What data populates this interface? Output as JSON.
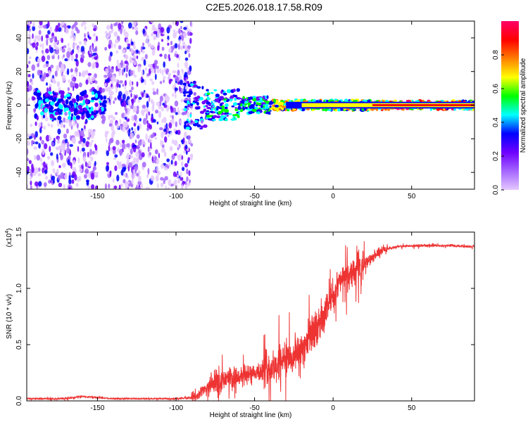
{
  "title": "C2E5.2026.018.17.58.R09",
  "chart_data": [
    {
      "type": "heatmap",
      "name": "spectrogram",
      "xlabel": "Height of straight line (km)",
      "ylabel": "Frequency (Hz)",
      "xlim": [
        -195,
        90
      ],
      "ylim": [
        -50,
        50
      ],
      "xticks": [
        -150,
        -100,
        -50,
        0,
        50
      ],
      "yticks": [
        -40,
        -20,
        0,
        20,
        40
      ],
      "colorbar": {
        "label": "Normalized spectral amplitude",
        "range": [
          0,
          1
        ],
        "ticks": [
          "0.0",
          "0.2",
          "0.4",
          "0.6",
          "0.8"
        ],
        "tick_values": [
          0,
          0.2,
          0.4,
          0.6,
          0.8
        ],
        "colors": [
          "#e4c8ff",
          "#a566ff",
          "#6f00ff",
          "#0000ff",
          "#00ffff",
          "#00ff00",
          "#ffff00",
          "#ff7f00",
          "#ff0000",
          "#ff0066"
        ]
      },
      "ridge": [
        {
          "x0": -95,
          "x1": -80,
          "width": 14,
          "amp": 0.45
        },
        {
          "x0": -80,
          "x1": -60,
          "width": 9,
          "amp": 0.55
        },
        {
          "x0": -60,
          "x1": -40,
          "width": 5,
          "amp": 0.6
        },
        {
          "x0": -40,
          "x1": -25,
          "width": 3,
          "amp": 0.8
        },
        {
          "x0": -25,
          "x1": -10,
          "width": 3,
          "amp": 0.9
        },
        {
          "x0": -10,
          "x1": 25,
          "width": 3,
          "amp": 0.75
        },
        {
          "x0": 25,
          "x1": 90,
          "width": 2.5,
          "amp": 0.95
        }
      ],
      "noise_bands": [
        {
          "x0": -195,
          "x1": -150,
          "spread": 50,
          "density": 0.9
        },
        {
          "x0": -150,
          "x1": -145,
          "spread": 10,
          "density": 0.5
        },
        {
          "x0": -145,
          "x1": -90,
          "spread": 50,
          "density": 1.0
        }
      ]
    },
    {
      "type": "line",
      "name": "snr",
      "xlabel": "Height of straight line (km)",
      "ylabel": "SNR (10 * v/v)",
      "yscale_label": "(x10",
      "yscale_exp": "4",
      "yscale_close": ")",
      "xlim": [
        -195,
        90
      ],
      "ylim": [
        0,
        1.5
      ],
      "xticks": [
        -150,
        -100,
        -50,
        0,
        50
      ],
      "yticks": [
        "0.0",
        "0.5",
        "1.0",
        "1.5"
      ],
      "ytick_values": [
        0,
        0.5,
        1.0,
        1.5
      ],
      "color": "#ee3333",
      "series": [
        {
          "x": -195,
          "y": 0.02
        },
        {
          "x": -170,
          "y": 0.02
        },
        {
          "x": -160,
          "y": 0.04
        },
        {
          "x": -140,
          "y": 0.02
        },
        {
          "x": -100,
          "y": 0.02
        },
        {
          "x": -90,
          "y": 0.03
        },
        {
          "x": -82,
          "y": 0.1
        },
        {
          "x": -75,
          "y": 0.17
        },
        {
          "x": -65,
          "y": 0.2
        },
        {
          "x": -55,
          "y": 0.23
        },
        {
          "x": -45,
          "y": 0.27
        },
        {
          "x": -35,
          "y": 0.32
        },
        {
          "x": -25,
          "y": 0.42
        },
        {
          "x": -18,
          "y": 0.5
        },
        {
          "x": -10,
          "y": 0.65
        },
        {
          "x": -5,
          "y": 0.78
        },
        {
          "x": 0,
          "y": 0.95
        },
        {
          "x": 5,
          "y": 1.08
        },
        {
          "x": 12,
          "y": 1.12
        },
        {
          "x": 18,
          "y": 1.2
        },
        {
          "x": 25,
          "y": 1.28
        },
        {
          "x": 32,
          "y": 1.34
        },
        {
          "x": 40,
          "y": 1.37
        },
        {
          "x": 55,
          "y": 1.38
        },
        {
          "x": 75,
          "y": 1.38
        },
        {
          "x": 90,
          "y": 1.37
        }
      ],
      "noise": [
        {
          "x0": -195,
          "x1": -90,
          "amp": 0.02
        },
        {
          "x0": -90,
          "x1": -80,
          "amp": 0.12
        },
        {
          "x0": -80,
          "x1": -45,
          "amp": 0.25
        },
        {
          "x0": -45,
          "x1": -10,
          "amp": 0.45
        },
        {
          "x0": -10,
          "x1": 20,
          "amp": 0.35
        },
        {
          "x0": 20,
          "x1": 35,
          "amp": 0.12
        },
        {
          "x0": 35,
          "x1": 90,
          "amp": 0.03
        }
      ]
    }
  ]
}
